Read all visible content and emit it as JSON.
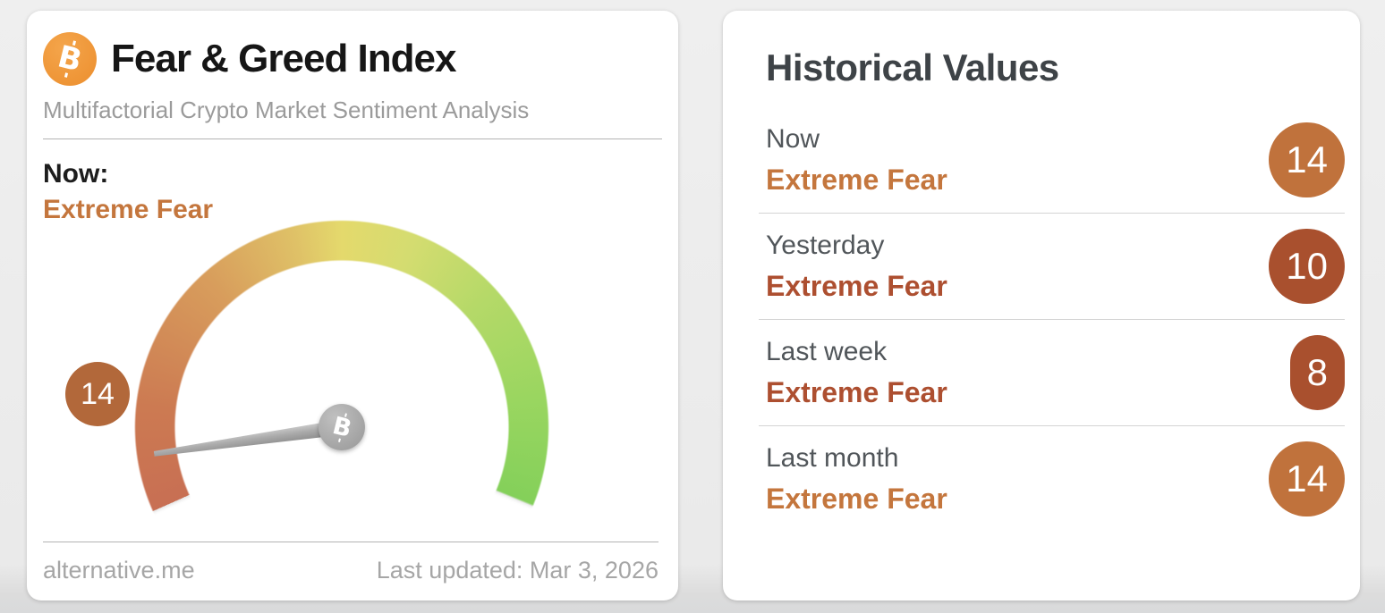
{
  "gauge_card": {
    "title": "Fear & Greed Index",
    "subtitle": "Multifactorial Crypto Market Sentiment Analysis",
    "bitcoin_glyph": "B",
    "now_label": "Now:",
    "now_value": "Extreme Fear",
    "gauge_value": "14",
    "footer_left": "alternative.me",
    "footer_right": "Last updated: Mar 3, 2026",
    "colors": {
      "now_value": "#c4763d",
      "gauge_badge": "#b2683a",
      "logo_orange": "#ef9838"
    }
  },
  "historical_card": {
    "title": "Historical Values",
    "rows": [
      {
        "label": "Now",
        "value": "Extreme Fear",
        "score": "14",
        "value_color": "#c4763d",
        "badge_color": "#c0723c"
      },
      {
        "label": "Yesterday",
        "value": "Extreme Fear",
        "score": "10",
        "value_color": "#ad4f30",
        "badge_color": "#a9502e"
      },
      {
        "label": "Last week",
        "value": "Extreme Fear",
        "score": "8",
        "value_color": "#ad4f30",
        "badge_color": "#a9502e"
      },
      {
        "label": "Last month",
        "value": "Extreme Fear",
        "score": "14",
        "value_color": "#c4763d",
        "badge_color": "#c0723c"
      }
    ]
  },
  "chart_data": {
    "type": "gauge",
    "title": "Fear & Greed Index",
    "subtitle": "Multifactorial Crypto Market Sentiment Analysis",
    "value": 14,
    "min": 0,
    "max": 100,
    "classification": "Extreme Fear",
    "last_updated": "Mar 3, 2026",
    "source": "alternative.me",
    "gauge_sweep_degrees": 226,
    "color_scale": [
      "#c86f53",
      "#d89d5c",
      "#e4d96c",
      "#b5d968",
      "#84d05a"
    ],
    "historical": [
      {
        "label": "Now",
        "value": 14,
        "classification": "Extreme Fear"
      },
      {
        "label": "Yesterday",
        "value": 10,
        "classification": "Extreme Fear"
      },
      {
        "label": "Last week",
        "value": 8,
        "classification": "Extreme Fear"
      },
      {
        "label": "Last month",
        "value": 14,
        "classification": "Extreme Fear"
      }
    ]
  }
}
